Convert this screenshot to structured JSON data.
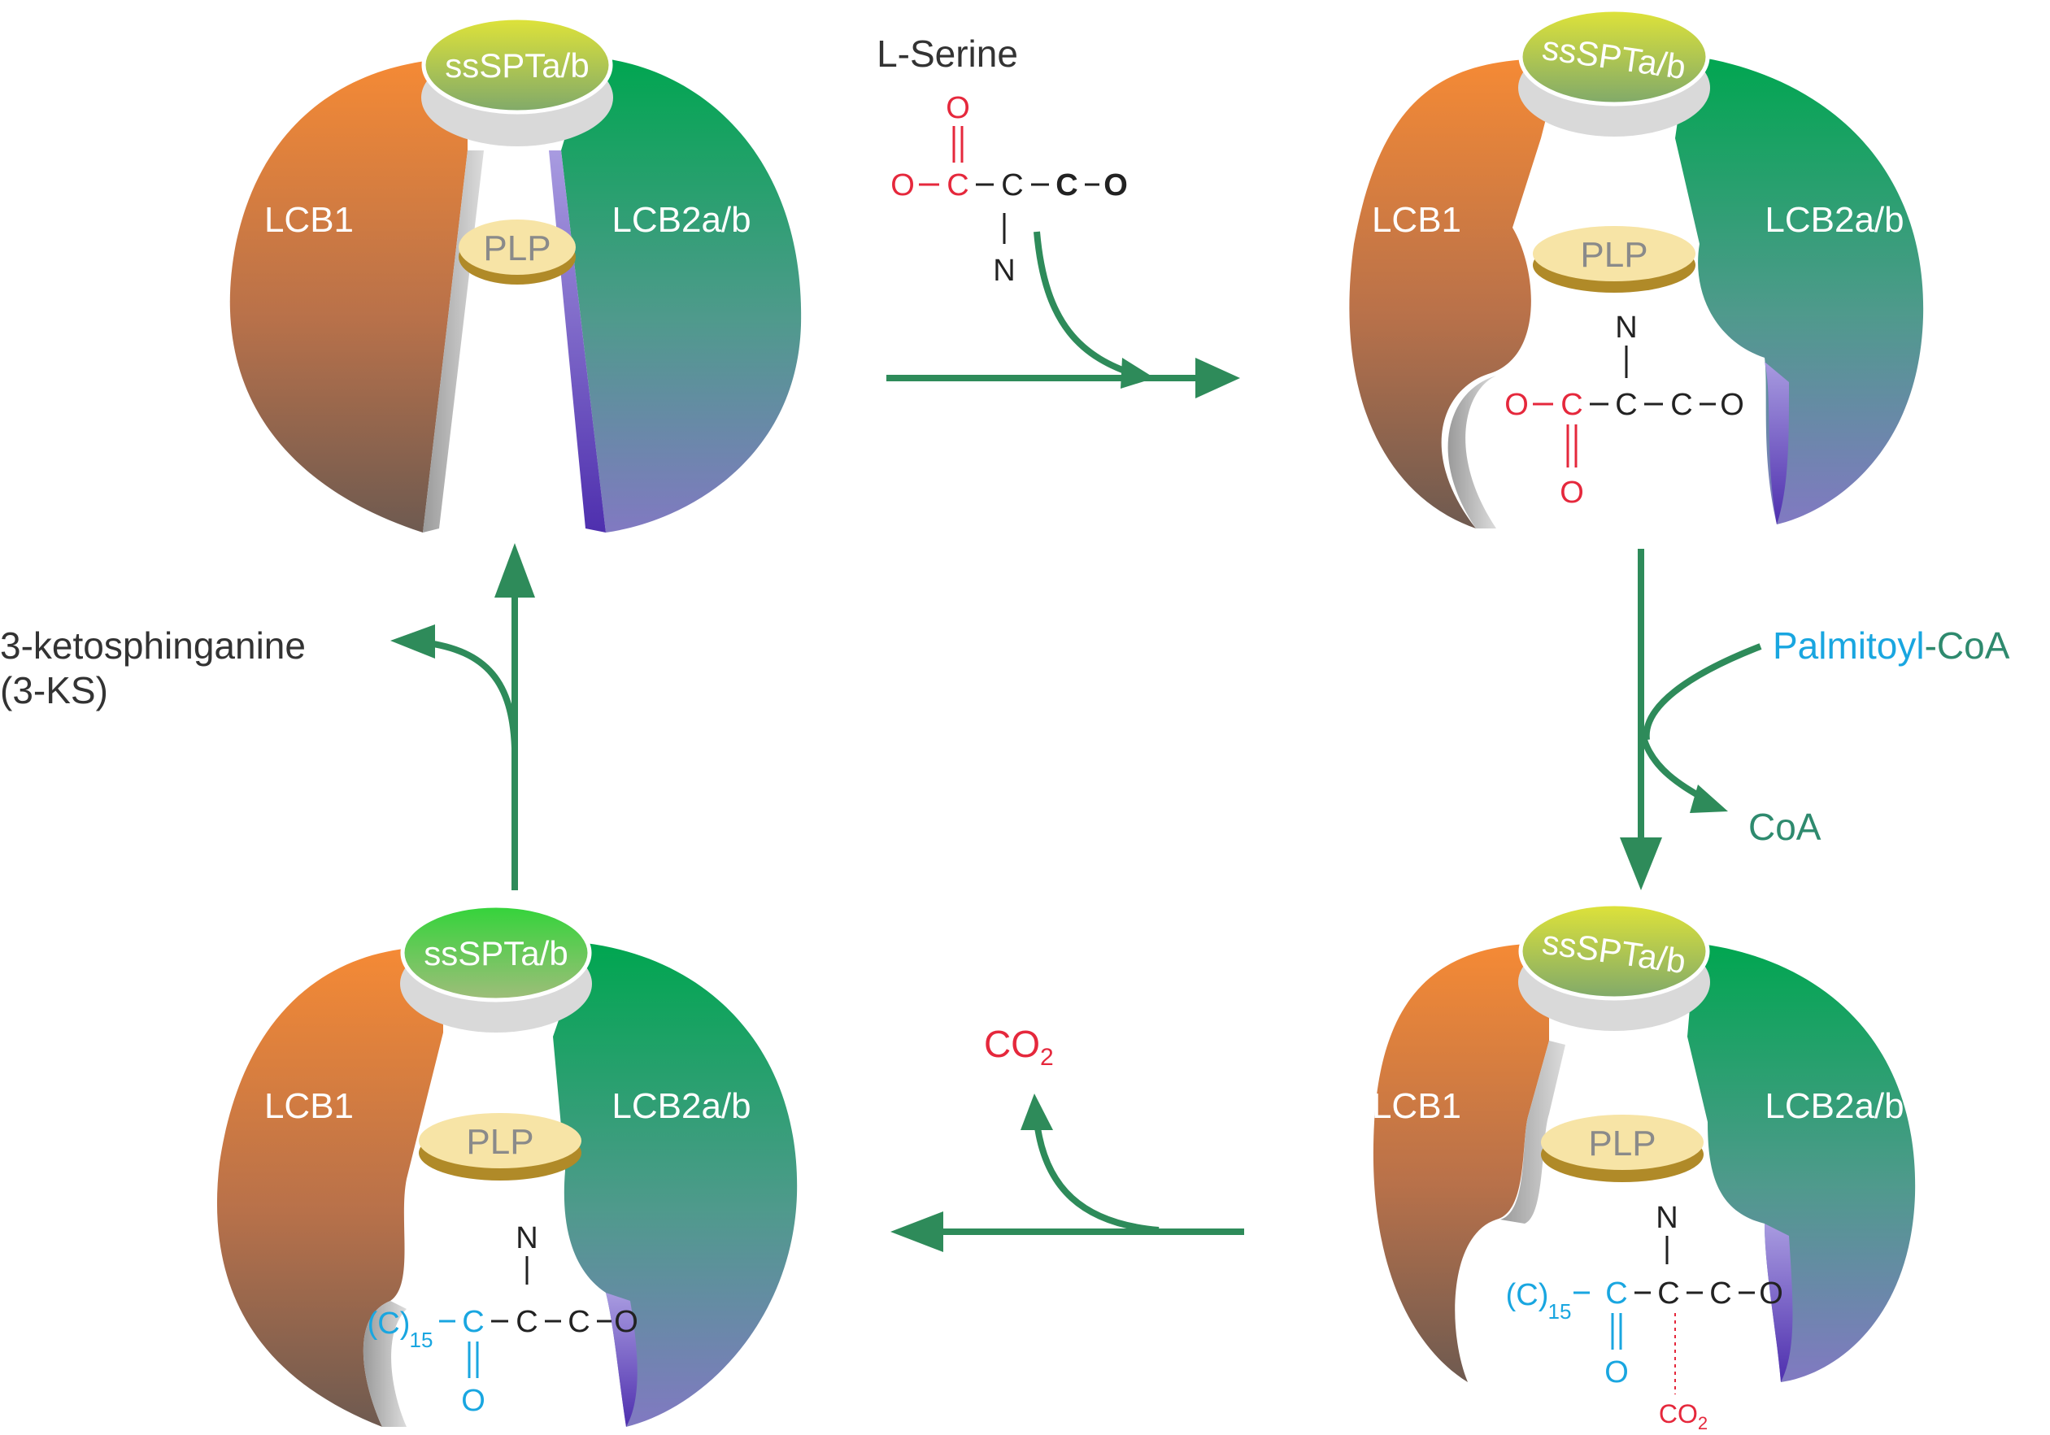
{
  "enzyme": {
    "lcb1": "LCB1",
    "lcb2": "LCB2a/b",
    "plp": "PLP",
    "ss": "ssSPTa/b"
  },
  "substrate_serine": {
    "name": "L-Serine",
    "o_top": "O",
    "o_left": "O",
    "c1": "C",
    "c2": "C",
    "c3": "C",
    "o_right": "O",
    "n": "N"
  },
  "bound_serine": {
    "n": "N",
    "o_left": "O",
    "c1": "C",
    "c2": "C",
    "c3": "C",
    "o_right": "O",
    "o_bottom": "O"
  },
  "palmitoyl": {
    "palmitoyl_part": "Palmitoyl",
    "dash_coa": "-CoA",
    "coa_out": "CoA"
  },
  "intermediate": {
    "n": "N",
    "chain_c": "(C)",
    "chain_sub": "15",
    "c_keto": "C",
    "c_alpha": "C",
    "c_carb": "C",
    "o_right": "O",
    "o_bottom": "O",
    "co2_a": "CO",
    "co2_sub": "2"
  },
  "decarboxylation": {
    "co2": "CO",
    "co2_sub": "2"
  },
  "product_complex": {
    "n": "N",
    "chain_c": "(C)",
    "chain_sub": "15",
    "c_keto": "C",
    "c_alpha": "C",
    "c_carb": "C",
    "o_right": "O",
    "o_bottom": "O"
  },
  "release": {
    "line1": "3-ketosphinganine",
    "line2": "(3-KS)"
  },
  "colors": {
    "lcb1_top": "#f08a3a",
    "lcb1_bottom": "#7a5c4e",
    "lcb2_top": "#00a650",
    "lcb2_bottom": "#7b6bbd",
    "arrow": "#2e8b5a",
    "serine_red": "#e5283c",
    "palmitoyl_cyan": "#19a6e0"
  }
}
